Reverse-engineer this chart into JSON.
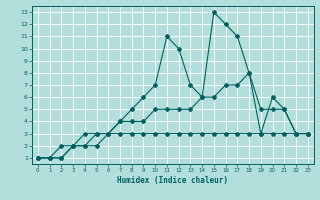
{
  "xlabel": "Humidex (Indice chaleur)",
  "bg_color": "#b2dfdb",
  "grid_color": "#ffffff",
  "line_color": "#006060",
  "xlim": [
    -0.5,
    23.5
  ],
  "ylim": [
    0.5,
    13.5
  ],
  "xticks": [
    0,
    1,
    2,
    3,
    4,
    5,
    6,
    7,
    8,
    9,
    10,
    11,
    12,
    13,
    14,
    15,
    16,
    17,
    18,
    19,
    20,
    21,
    22,
    23
  ],
  "yticks": [
    1,
    2,
    3,
    4,
    5,
    6,
    7,
    8,
    9,
    10,
    11,
    12,
    13
  ],
  "line1_x": [
    0,
    1,
    2,
    3,
    4,
    5,
    6,
    7,
    8,
    9,
    10,
    11,
    12,
    13,
    14,
    15,
    16,
    17,
    18,
    19,
    20,
    21,
    22,
    23
  ],
  "line1_y": [
    1,
    1,
    1,
    2,
    2,
    3,
    3,
    4,
    5,
    6,
    7,
    11,
    10,
    7,
    6,
    13,
    12,
    11,
    8,
    3,
    6,
    5,
    3,
    3
  ],
  "line2_x": [
    0,
    1,
    2,
    3,
    4,
    5,
    6,
    7,
    8,
    9,
    10,
    11,
    12,
    13,
    14,
    15,
    16,
    17,
    18,
    19,
    20,
    21,
    22,
    23
  ],
  "line2_y": [
    1,
    1,
    2,
    2,
    3,
    3,
    3,
    4,
    4,
    4,
    5,
    5,
    5,
    5,
    6,
    6,
    7,
    7,
    8,
    5,
    5,
    5,
    3,
    3
  ],
  "line3_x": [
    0,
    1,
    2,
    3,
    4,
    5,
    6,
    7,
    8,
    9,
    10,
    11,
    12,
    13,
    14,
    15,
    16,
    17,
    18,
    19,
    20,
    21,
    22,
    23
  ],
  "line3_y": [
    1,
    1,
    1,
    2,
    2,
    2,
    3,
    3,
    3,
    3,
    3,
    3,
    3,
    3,
    3,
    3,
    3,
    3,
    3,
    3,
    3,
    3,
    3,
    3
  ]
}
